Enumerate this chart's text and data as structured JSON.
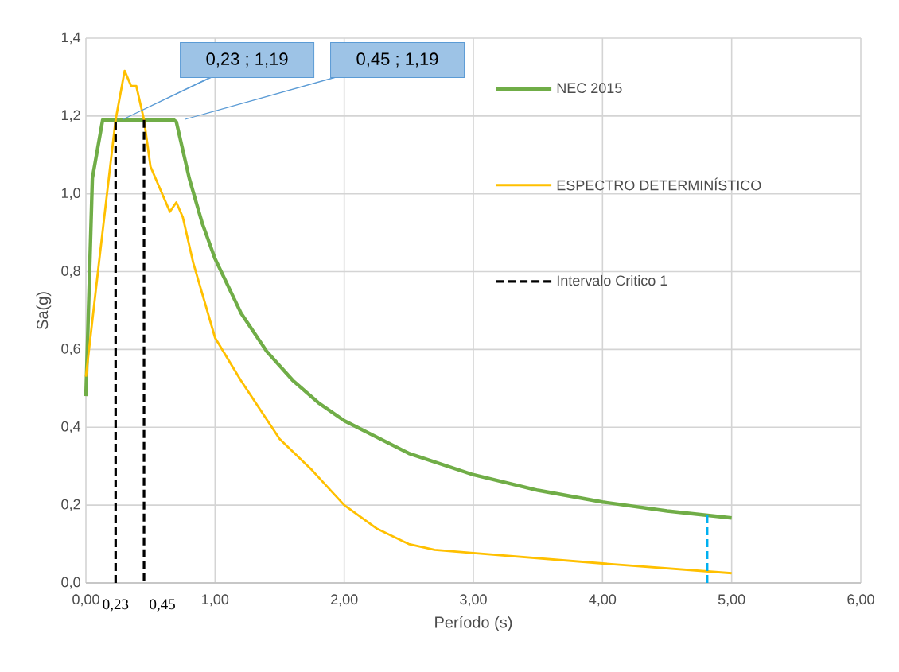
{
  "chart_data": {
    "type": "line",
    "xlabel": "Período (s)",
    "ylabel": "Sa(g)",
    "xlim": [
      0,
      6
    ],
    "ylim": [
      0,
      1.4
    ],
    "xticks": [
      {
        "value": 0,
        "label": "0,00"
      },
      {
        "value": 1,
        "label": "1,00"
      },
      {
        "value": 2,
        "label": "2,00"
      },
      {
        "value": 3,
        "label": "3,00"
      },
      {
        "value": 4,
        "label": "4,00"
      },
      {
        "value": 5,
        "label": "5,00"
      },
      {
        "value": 6,
        "label": "6,00"
      }
    ],
    "yticks": [
      {
        "value": 0,
        "label": "0,0"
      },
      {
        "value": 0.2,
        "label": "0,2"
      },
      {
        "value": 0.4,
        "label": "0,4"
      },
      {
        "value": 0.6,
        "label": "0,6"
      },
      {
        "value": 0.8,
        "label": "0,8"
      },
      {
        "value": 1.0,
        "label": "1,0"
      },
      {
        "value": 1.2,
        "label": "1,2"
      },
      {
        "value": 1.4,
        "label": "1,4"
      }
    ],
    "grid": true,
    "legend": "right",
    "marker": "none",
    "line_style": "solid",
    "series": [
      {
        "name": "NEC 2015",
        "color": "#70ad47",
        "x": [
          0,
          0.05,
          0.13,
          0.68,
          0.7,
          0.8,
          0.9,
          1.0,
          1.2,
          1.4,
          1.6,
          1.8,
          2.0,
          2.5,
          3.0,
          3.5,
          4.0,
          4.5,
          5.0
        ],
        "values": [
          0.48,
          1.04,
          1.19,
          1.19,
          1.185,
          1.04,
          0.925,
          0.833,
          0.694,
          0.595,
          0.521,
          0.463,
          0.417,
          0.333,
          0.278,
          0.238,
          0.208,
          0.185,
          0.167
        ]
      },
      {
        "name": "ESPECTRO DETERMINÍSTICO",
        "color": "#ffc000",
        "x": [
          0,
          0.1,
          0.23,
          0.3,
          0.35,
          0.39,
          0.45,
          0.5,
          0.65,
          0.7,
          0.75,
          0.83,
          1.0,
          1.2,
          1.5,
          1.75,
          2.0,
          2.25,
          2.5,
          2.7,
          3.0,
          4.0,
          5.0
        ],
        "values": [
          0.53,
          0.82,
          1.19,
          1.316,
          1.277,
          1.277,
          1.19,
          1.07,
          0.954,
          0.978,
          0.94,
          0.824,
          0.63,
          0.52,
          0.37,
          0.29,
          0.2,
          0.14,
          0.1,
          0.085,
          0.077,
          0.05,
          0.025
        ]
      },
      {
        "name": "Intervalo Critico 1",
        "color": "#000000",
        "line_style": "dashed",
        "x": [
          0.23,
          0.23
        ],
        "values": [
          0,
          1.19
        ]
      },
      {
        "color": "#000000",
        "line_style": "dashed",
        "x": [
          0.45,
          0.45
        ],
        "values": [
          1.19,
          0
        ]
      },
      {
        "color": "#00b0f0",
        "line_style": "dashed",
        "x": [
          4.81,
          4.81
        ],
        "values": [
          0,
          0.175
        ]
      }
    ],
    "annotations": [
      "0,23 ; 1,19",
      "0,45 ; 1,19",
      {
        "text": "0,23",
        "x": 0.23,
        "y": 0
      },
      {
        "text": "0,45",
        "x": 0.45,
        "y": 0
      }
    ]
  }
}
